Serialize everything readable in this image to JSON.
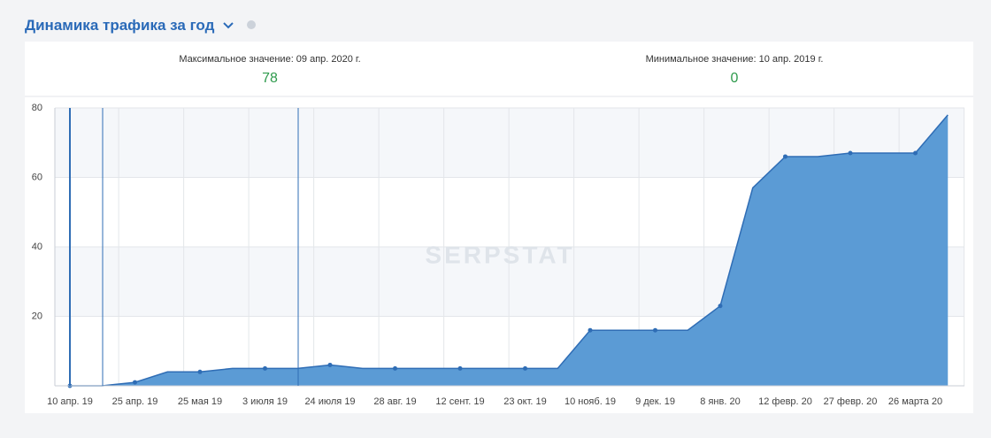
{
  "header": {
    "title": "Динамика трафика за год"
  },
  "stats": [
    {
      "label": "Максимальное значение: 09 апр. 2020 г.",
      "value": 78
    },
    {
      "label": "Минимальное значение: 10 апр. 2019 г.",
      "value": 0
    }
  ],
  "watermark": "SERPSTAT",
  "chart_data": {
    "type": "area",
    "categories": [
      "10 апр. 19",
      null,
      "25 апр. 19",
      null,
      "25 мая 19",
      null,
      "3 июля 19",
      null,
      "24 июля 19",
      null,
      "28 авг. 19",
      null,
      "12 сент. 19",
      null,
      "23 окт. 19",
      null,
      "10 нояб. 19",
      null,
      "9 дек. 19",
      null,
      "8 янв. 20",
      null,
      "12 февр. 20",
      null,
      "27 февр. 20",
      null,
      "26 марта 20",
      null
    ],
    "values": [
      0,
      0,
      1,
      4,
      4,
      5,
      5,
      5,
      6,
      5,
      5,
      5,
      5,
      5,
      5,
      5,
      16,
      16,
      16,
      16,
      23,
      57,
      66,
      66,
      67,
      67,
      67,
      78
    ],
    "color": "#5b9bd5",
    "line_color": "#2f6db5",
    "ylim": [
      0,
      80
    ],
    "yticks": [
      20,
      40,
      60,
      80
    ],
    "grid": true
  }
}
